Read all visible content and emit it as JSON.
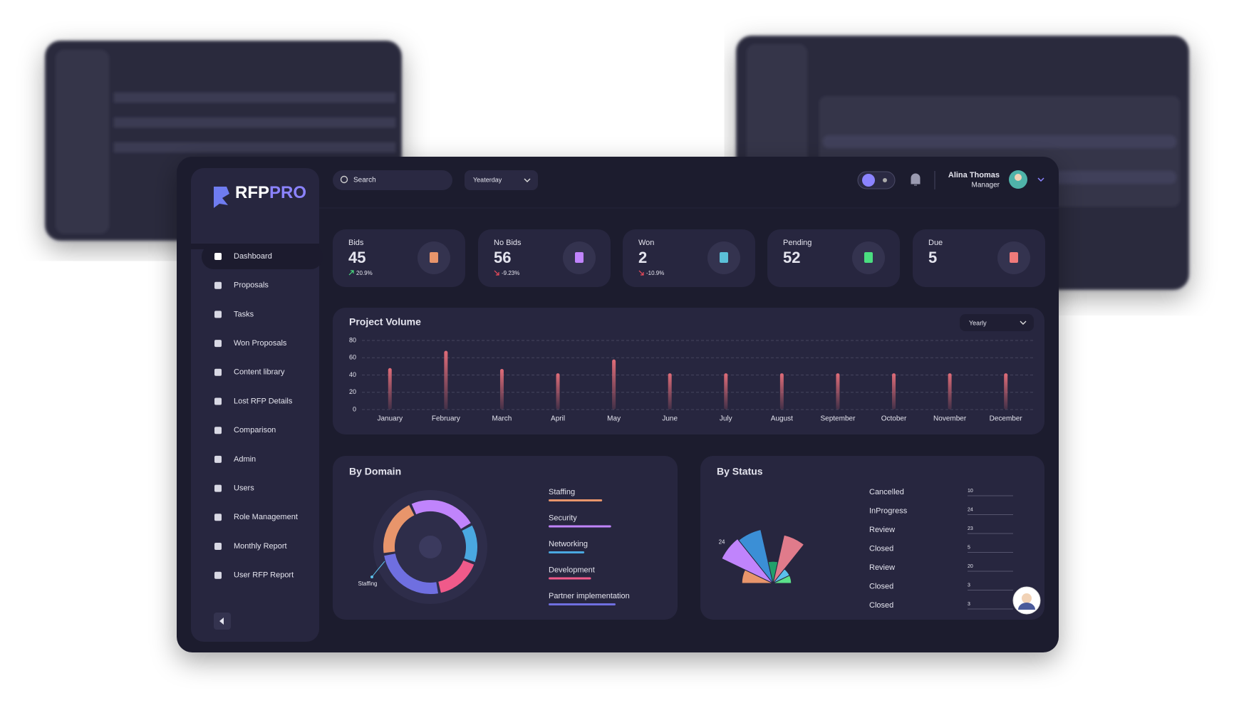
{
  "sidebar": {
    "logo_primary": "RFP",
    "logo_accent": "PRO",
    "nav": [
      "Dashboard",
      "Proposals",
      "Tasks",
      "Won Proposals",
      "Content library",
      "Lost RFP Details",
      "Comparison",
      "Admin",
      "Users",
      "Role Management",
      "Monthly Report",
      "User RFP Report"
    ]
  },
  "header": {
    "search_placeholder": "Search",
    "period": "Yeaterday",
    "user_name": "Alina Thomas",
    "user_role": "Manager"
  },
  "stats": [
    {
      "label": "Bids",
      "value": 45,
      "change": "20.9%",
      "color": "#e8956b"
    },
    {
      "label": "No Bids",
      "value": 56,
      "change": "-9.23%",
      "color": "#c084fc"
    },
    {
      "label": "Won",
      "value": 2,
      "change": "-10.9%",
      "color": "#5bc0d8"
    },
    {
      "label": "Pending",
      "value": 52,
      "color": "#4ade80"
    },
    {
      "label": "Due",
      "value": 5,
      "color": "#f07a7a"
    }
  ],
  "chart_data": [
    {
      "type": "bar",
      "title": "Project Volume",
      "filter": "Yearly",
      "categories": [
        "January",
        "February",
        "March",
        "April",
        "May",
        "June",
        "July",
        "August",
        "September",
        "October",
        "November",
        "December"
      ],
      "values": [
        48,
        68,
        47,
        42,
        58,
        42,
        42,
        42,
        42,
        42,
        42,
        42
      ],
      "color": "#e06c78",
      "ylim": [
        0,
        80
      ],
      "yticks": [
        0,
        20,
        40,
        60,
        80
      ],
      "grid": true
    },
    {
      "type": "donut",
      "title": "By Domain",
      "annotation": "Staffing",
      "categories": [
        "Staffing",
        "Security",
        "Networking",
        "Development",
        "Partner implementation"
      ],
      "values": [
        24,
        28,
        16,
        19,
        30
      ],
      "colors": [
        "#e8956b",
        "#c084fc",
        "#4aa8e0",
        "#f05a8a",
        "#6f6fe0"
      ]
    },
    {
      "type": "polar",
      "title": "By Status",
      "categories": [
        "Cancelled",
        "InProgress",
        "Review",
        "Closed",
        "Review",
        "Closed",
        "Closed"
      ],
      "values": [
        10,
        24,
        23,
        5,
        20,
        3,
        3
      ],
      "colors": [
        "#e8956b",
        "#c084fc",
        "#3b8fd6",
        "#22a06b",
        "#e07b8b",
        "#5bc0eb",
        "#5be08a"
      ]
    }
  ]
}
